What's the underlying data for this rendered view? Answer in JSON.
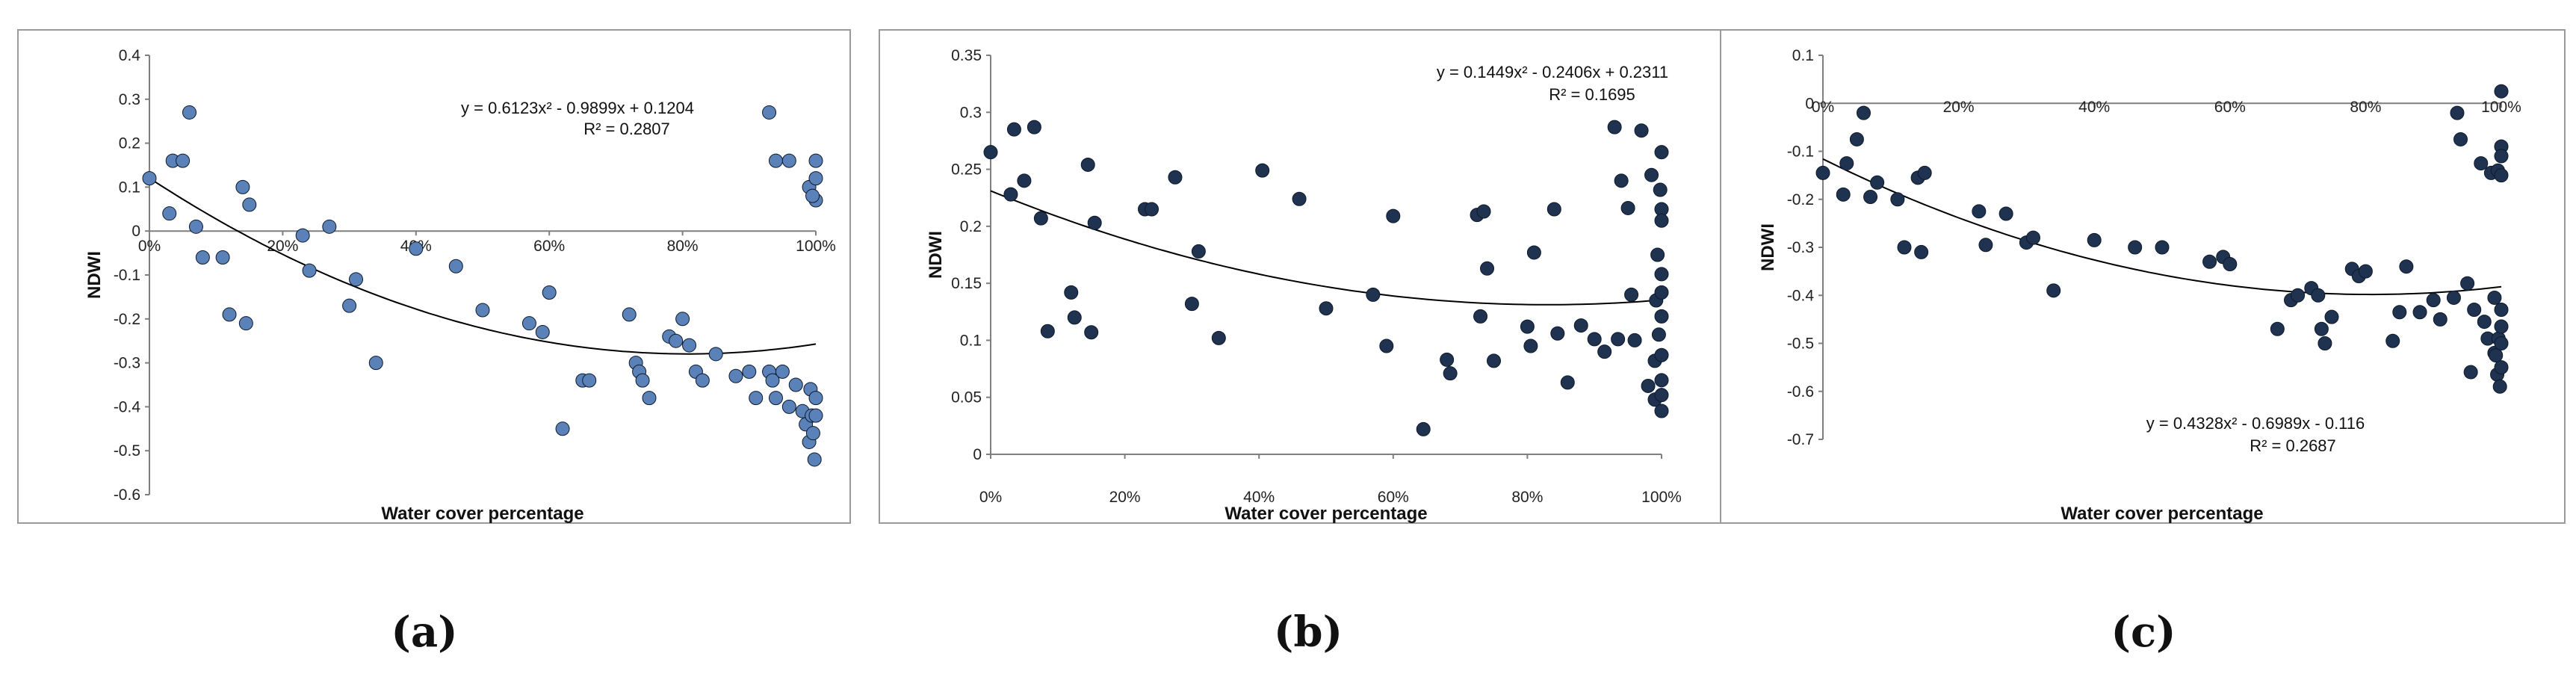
{
  "chart_data": [
    {
      "panel": "(a)",
      "type": "scatter",
      "xlabel": "Water cover percentage",
      "ylabel": "NDWI",
      "xlim": [
        0,
        100
      ],
      "ylim": [
        -0.6,
        0.4
      ],
      "xticks": [
        "0%",
        "20%",
        "40%",
        "60%",
        "80%",
        "100%"
      ],
      "yticks": [
        "0.4",
        "0.3",
        "0.2",
        "0.1",
        "0",
        "-0.1",
        "-0.2",
        "-0.3",
        "-0.4",
        "-0.5",
        "-0.6"
      ],
      "equation": "y = 0.6123x² - 0.9899x + 0.1204",
      "r2": "R² = 0.2807",
      "fit": [
        0.6123,
        -0.9899,
        0.1204
      ],
      "marker_color": "#5b82b8",
      "points": [
        [
          0,
          0.12
        ],
        [
          3,
          0.04
        ],
        [
          3.5,
          0.16
        ],
        [
          5,
          0.16
        ],
        [
          6,
          0.27
        ],
        [
          7,
          0.01
        ],
        [
          8,
          -0.06
        ],
        [
          11,
          -0.06
        ],
        [
          12,
          -0.19
        ],
        [
          14,
          0.1
        ],
        [
          14.5,
          -0.21
        ],
        [
          15,
          0.06
        ],
        [
          23,
          -0.01
        ],
        [
          24,
          -0.09
        ],
        [
          27,
          0.01
        ],
        [
          30,
          -0.17
        ],
        [
          31,
          -0.11
        ],
        [
          34,
          -0.3
        ],
        [
          40,
          -0.04
        ],
        [
          46,
          -0.08
        ],
        [
          50,
          -0.18
        ],
        [
          57,
          -0.21
        ],
        [
          59,
          -0.23
        ],
        [
          60,
          -0.14
        ],
        [
          62,
          -0.45
        ],
        [
          65,
          -0.34
        ],
        [
          66,
          -0.34
        ],
        [
          72,
          -0.19
        ],
        [
          73,
          -0.3
        ],
        [
          73.5,
          -0.32
        ],
        [
          74,
          -0.34
        ],
        [
          75,
          -0.38
        ],
        [
          78,
          -0.24
        ],
        [
          79,
          -0.25
        ],
        [
          80,
          -0.2
        ],
        [
          81,
          -0.26
        ],
        [
          82,
          -0.32
        ],
        [
          83,
          -0.34
        ],
        [
          85,
          -0.28
        ],
        [
          88,
          -0.33
        ],
        [
          90,
          -0.32
        ],
        [
          91,
          -0.38
        ],
        [
          93,
          -0.32
        ],
        [
          93.5,
          -0.34
        ],
        [
          94,
          -0.38
        ],
        [
          95,
          -0.32
        ],
        [
          96,
          -0.4
        ],
        [
          97,
          -0.35
        ],
        [
          98,
          -0.41
        ],
        [
          98.5,
          -0.44
        ],
        [
          99,
          -0.48
        ],
        [
          99,
          0.1
        ],
        [
          99.2,
          -0.36
        ],
        [
          99.4,
          -0.42
        ],
        [
          99.6,
          -0.46
        ],
        [
          99.8,
          -0.52
        ],
        [
          100,
          -0.38
        ],
        [
          100,
          -0.42
        ],
        [
          100,
          0.12
        ],
        [
          100,
          0.07
        ],
        [
          100,
          0.16
        ],
        [
          99.5,
          0.08
        ],
        [
          93,
          0.27
        ],
        [
          94,
          0.16
        ],
        [
          96,
          0.16
        ]
      ]
    },
    {
      "panel": "(b)",
      "type": "scatter",
      "xlabel": "Water cover percentage",
      "ylabel": "NDWI",
      "xlim": [
        0,
        100
      ],
      "ylim": [
        0,
        0.35
      ],
      "xticks": [
        "0%",
        "20%",
        "40%",
        "60%",
        "80%",
        "100%"
      ],
      "yticks": [
        "0.35",
        "0.3",
        "0.25",
        "0.2",
        "0.15",
        "0.1",
        "0.05",
        "0"
      ],
      "equation": "y = 0.1449x² - 0.2406x + 0.2311",
      "r2": "R² = 0.1695",
      "fit": [
        0.1449,
        -0.2406,
        0.2311
      ],
      "marker_color": "#1f3350",
      "points": [
        [
          0,
          0.265
        ],
        [
          3,
          0.228
        ],
        [
          3.5,
          0.285
        ],
        [
          5,
          0.24
        ],
        [
          6.5,
          0.287
        ],
        [
          7.5,
          0.207
        ],
        [
          8.5,
          0.108
        ],
        [
          12,
          0.142
        ],
        [
          12.5,
          0.12
        ],
        [
          14.5,
          0.254
        ],
        [
          15,
          0.107
        ],
        [
          15.5,
          0.203
        ],
        [
          23,
          0.215
        ],
        [
          24,
          0.215
        ],
        [
          27.5,
          0.243
        ],
        [
          30,
          0.132
        ],
        [
          31,
          0.178
        ],
        [
          34,
          0.102
        ],
        [
          40.5,
          0.249
        ],
        [
          46,
          0.224
        ],
        [
          50,
          0.128
        ],
        [
          57,
          0.14
        ],
        [
          59,
          0.095
        ],
        [
          60,
          0.209
        ],
        [
          64.5,
          0.022
        ],
        [
          68,
          0.083
        ],
        [
          68.5,
          0.071
        ],
        [
          72.5,
          0.21
        ],
        [
          73,
          0.121
        ],
        [
          73.5,
          0.213
        ],
        [
          74,
          0.163
        ],
        [
          75,
          0.082
        ],
        [
          80,
          0.112
        ],
        [
          80.5,
          0.095
        ],
        [
          81,
          0.177
        ],
        [
          84,
          0.215
        ],
        [
          84.5,
          0.106
        ],
        [
          86,
          0.063
        ],
        [
          88,
          0.113
        ],
        [
          90,
          0.101
        ],
        [
          91.5,
          0.09
        ],
        [
          93,
          0.287
        ],
        [
          93.5,
          0.101
        ],
        [
          94,
          0.24
        ],
        [
          95,
          0.216
        ],
        [
          95.5,
          0.14
        ],
        [
          96,
          0.1
        ],
        [
          97,
          0.284
        ],
        [
          98,
          0.06
        ],
        [
          98.5,
          0.245
        ],
        [
          99,
          0.048
        ],
        [
          99,
          0.082
        ],
        [
          99.2,
          0.135
        ],
        [
          99.4,
          0.175
        ],
        [
          99.6,
          0.105
        ],
        [
          99.8,
          0.232
        ],
        [
          100,
          0.265
        ],
        [
          100,
          0.215
        ],
        [
          100,
          0.158
        ],
        [
          100,
          0.121
        ],
        [
          100,
          0.087
        ],
        [
          100,
          0.065
        ],
        [
          100,
          0.038
        ],
        [
          100,
          0.205
        ],
        [
          100,
          0.142
        ],
        [
          100,
          0.052
        ]
      ]
    },
    {
      "panel": "(c)",
      "type": "scatter",
      "xlabel": "Water cover percentage",
      "ylabel": "NDWI",
      "xlim": [
        0,
        100
      ],
      "ylim": [
        -0.7,
        0.1
      ],
      "xticks": [
        "0%",
        "20%",
        "40%",
        "60%",
        "80%",
        "100%"
      ],
      "yticks": [
        "0.1",
        "0",
        "-0.1",
        "-0.2",
        "-0.3",
        "-0.4",
        "-0.5",
        "-0.6",
        "-0.7"
      ],
      "equation": "y = 0.4328x² - 0.6989x - 0.116",
      "r2": "R² = 0.2687",
      "fit": [
        0.4328,
        -0.6989,
        -0.116
      ],
      "marker_color": "#1f3350",
      "points": [
        [
          0,
          -0.145
        ],
        [
          3,
          -0.19
        ],
        [
          3.5,
          -0.125
        ],
        [
          5,
          -0.075
        ],
        [
          6,
          -0.02
        ],
        [
          7,
          -0.195
        ],
        [
          8,
          -0.165
        ],
        [
          11,
          -0.2
        ],
        [
          12,
          -0.3
        ],
        [
          14,
          -0.155
        ],
        [
          14.5,
          -0.31
        ],
        [
          15,
          -0.145
        ],
        [
          23,
          -0.225
        ],
        [
          24,
          -0.295
        ],
        [
          27,
          -0.23
        ],
        [
          30,
          -0.29
        ],
        [
          31,
          -0.28
        ],
        [
          34,
          -0.39
        ],
        [
          40,
          -0.285
        ],
        [
          46,
          -0.3
        ],
        [
          50,
          -0.3
        ],
        [
          57,
          -0.33
        ],
        [
          59,
          -0.32
        ],
        [
          60,
          -0.335
        ],
        [
          67,
          -0.47
        ],
        [
          69,
          -0.41
        ],
        [
          70,
          -0.4
        ],
        [
          72,
          -0.385
        ],
        [
          73,
          -0.4
        ],
        [
          73.5,
          -0.47
        ],
        [
          74,
          -0.5
        ],
        [
          75,
          -0.445
        ],
        [
          78,
          -0.345
        ],
        [
          79,
          -0.36
        ],
        [
          80,
          -0.35
        ],
        [
          84,
          -0.495
        ],
        [
          85,
          -0.435
        ],
        [
          86,
          -0.34
        ],
        [
          88,
          -0.435
        ],
        [
          90,
          -0.41
        ],
        [
          91,
          -0.45
        ],
        [
          93,
          -0.405
        ],
        [
          93.5,
          -0.02
        ],
        [
          94,
          -0.075
        ],
        [
          95,
          -0.375
        ],
        [
          95.5,
          -0.56
        ],
        [
          96,
          -0.43
        ],
        [
          97,
          -0.125
        ],
        [
          97.5,
          -0.455
        ],
        [
          98,
          -0.49
        ],
        [
          98.5,
          -0.145
        ],
        [
          99,
          -0.52
        ],
        [
          99,
          -0.405
        ],
        [
          99.2,
          -0.525
        ],
        [
          99.4,
          -0.565
        ],
        [
          99.5,
          -0.14
        ],
        [
          99.6,
          -0.49
        ],
        [
          99.8,
          -0.59
        ],
        [
          100,
          0.025
        ],
        [
          100,
          -0.09
        ],
        [
          100,
          -0.11
        ],
        [
          100,
          -0.15
        ],
        [
          100,
          -0.43
        ],
        [
          100,
          -0.465
        ],
        [
          100,
          -0.5
        ],
        [
          100,
          -0.55
        ]
      ]
    }
  ],
  "captions": [
    "(a)",
    "(b)",
    "(c)"
  ]
}
